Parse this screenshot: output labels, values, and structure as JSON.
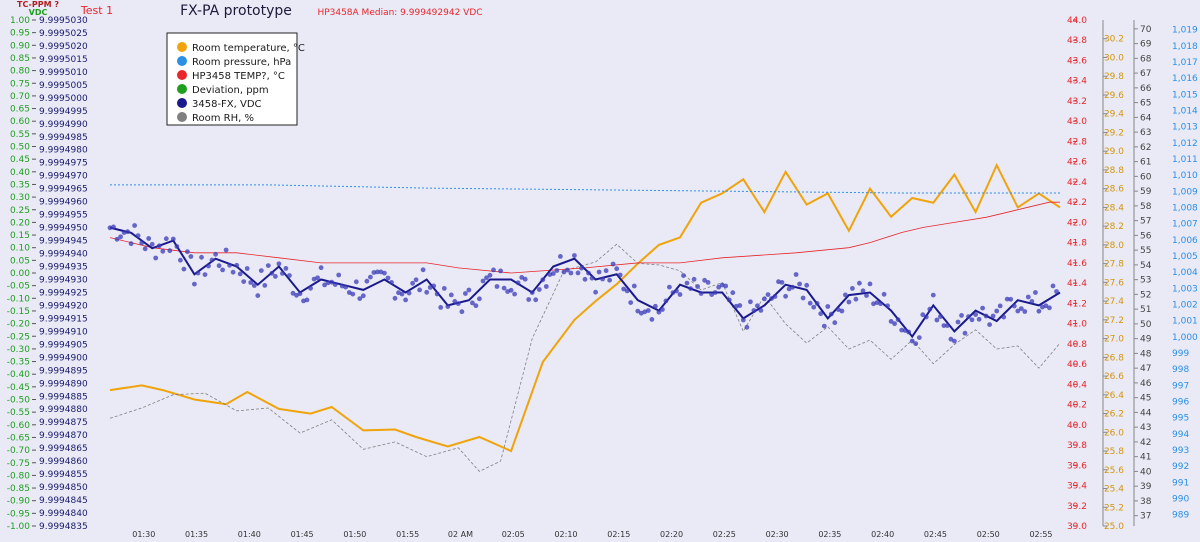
{
  "header": {
    "tc_label": "TC-PPM ?",
    "vdc_label": "VDC",
    "test_label": "Test 1",
    "title": "FX-PA prototype",
    "median_label": "HP3458A Median: 9.999492942 VDC"
  },
  "colors": {
    "background": "#e9eaf6",
    "room_temperature": "#f0a30a",
    "room_pressure": "#2b8fe6",
    "hp_temp": "#e8262b",
    "deviation": "#1e9e1e",
    "vdc": "#1a1a8c",
    "rh": "#808080"
  },
  "legend": [
    {
      "label": "Room temperature, °C",
      "color": "#f0a30a"
    },
    {
      "label": "Room pressure, hPa",
      "color": "#2b8fe6"
    },
    {
      "label": "HP3458 TEMP?, °C",
      "color": "#e8262b"
    },
    {
      "label": "Deviation, ppm",
      "color": "#1e9e1e"
    },
    {
      "label": "3458-FX, VDC",
      "color": "#1a1a8c"
    },
    {
      "label": "Room RH, %",
      "color": "#808080"
    }
  ],
  "chart_data": {
    "type": "line",
    "x_ticks": [
      "01:30",
      "01:35",
      "01:40",
      "01:45",
      "01:50",
      "01:55",
      "02 AM",
      "02:05",
      "02:10",
      "02:15",
      "02:20",
      "02:25",
      "02:30",
      "02:35",
      "02:40",
      "02:45",
      "02:50",
      "02:55"
    ],
    "axes": {
      "ppm": {
        "ylim": [
          -1.0,
          1.0
        ],
        "ticks": [
          "1.00",
          "0.95",
          "0.90",
          "0.85",
          "0.80",
          "0.75",
          "0.70",
          "0.65",
          "0.60",
          "0.55",
          "0.50",
          "0.45",
          "0.40",
          "0.35",
          "0.30",
          "0.25",
          "0.20",
          "0.15",
          "0.10",
          "0.05",
          "0.00",
          "-0.05",
          "-0.10",
          "-0.15",
          "-0.20",
          "-0.25",
          "-0.30",
          "-0.35",
          "-0.40",
          "-0.45",
          "-0.50",
          "-0.55",
          "-0.60",
          "-0.65",
          "-0.70",
          "-0.75",
          "-0.80",
          "-0.85",
          "-0.90",
          "-0.95",
          "-1.00"
        ]
      },
      "vdc": {
        "ylim": [
          9.9994835,
          9.999503
        ],
        "ticks": [
          "9.9995030",
          "9.9995025",
          "9.9995020",
          "9.9995015",
          "9.9995010",
          "9.9995005",
          "9.9995000",
          "9.9994995",
          "9.9994990",
          "9.9994985",
          "9.9994980",
          "9.9994975",
          "9.9994970",
          "9.9994965",
          "9.9994960",
          "9.9994955",
          "9.9994950",
          "9.9994945",
          "9.9994940",
          "9.9994935",
          "9.9994930",
          "9.9994925",
          "9.9994920",
          "9.9994915",
          "9.9994910",
          "9.9994905",
          "9.9994900",
          "9.9994895",
          "9.9994890",
          "9.9994885",
          "9.9994880",
          "9.9994875",
          "9.9994870",
          "9.9994865",
          "9.9994860",
          "9.9994855",
          "9.9994850",
          "9.9994845",
          "9.9994840",
          "9.9994835"
        ]
      },
      "hp_temp": {
        "ylim": [
          39.0,
          44.0
        ],
        "ticks": [
          "44.0",
          "43.8",
          "43.6",
          "43.4",
          "43.2",
          "43.0",
          "42.8",
          "42.6",
          "42.4",
          "42.2",
          "42.0",
          "41.8",
          "41.6",
          "41.4",
          "41.2",
          "41.0",
          "40.8",
          "40.6",
          "40.4",
          "40.2",
          "40.0",
          "39.8",
          "39.6",
          "39.4",
          "39.2",
          "39.0"
        ]
      },
      "room_temp": {
        "ylim": [
          25.0,
          30.4
        ],
        "ticks": [
          "30.2",
          "30.0",
          "29.8",
          "29.6",
          "29.4",
          "29.2",
          "29.0",
          "28.8",
          "28.6",
          "28.4",
          "28.2",
          "28.0",
          "27.8",
          "27.6",
          "27.4",
          "27.2",
          "27.0",
          "26.8",
          "26.6",
          "26.4",
          "26.2",
          "26.0",
          "25.8",
          "25.6",
          "25.4",
          "25.2",
          "25.0"
        ]
      },
      "rh": {
        "ylim": [
          36.3,
          70.6
        ],
        "ticks": [
          "70",
          "69",
          "68",
          "67",
          "66",
          "65",
          "64",
          "63",
          "62",
          "61",
          "60",
          "59",
          "58",
          "57",
          "56",
          "55",
          "54",
          "53",
          "52",
          "51",
          "50",
          "49",
          "48",
          "47",
          "46",
          "45",
          "44",
          "43",
          "42",
          "41",
          "40",
          "39",
          "38",
          "37"
        ]
      },
      "pressure": {
        "ylim": [
          988.3,
          1019.6
        ],
        "ticks": [
          "1,019",
          "1,018",
          "1,017",
          "1,016",
          "1,015",
          "1,014",
          "1,013",
          "1,012",
          "1,011",
          "1,010",
          "1,009",
          "1,008",
          "1,007",
          "1,006",
          "1,005",
          "1,004",
          "1,003",
          "1,002",
          "1,001",
          "1,000",
          "999",
          "998",
          "997",
          "996",
          "995",
          "994",
          "993",
          "992",
          "991",
          "990",
          "989"
        ]
      }
    },
    "series": [
      {
        "name": "Room temperature, °C",
        "axis": "room_temp",
        "color": "#f0a30a",
        "x": [
          0,
          3,
          5,
          8,
          11,
          13,
          16,
          19,
          21,
          24,
          27,
          29,
          32,
          35,
          38,
          41,
          44,
          46,
          48,
          50,
          52,
          54,
          56,
          58,
          60,
          62,
          64,
          66,
          68,
          70,
          72,
          74,
          76,
          78,
          80,
          82,
          84,
          86,
          88,
          90
        ],
        "y": [
          26.45,
          26.5,
          26.45,
          26.35,
          26.3,
          26.43,
          26.25,
          26.2,
          26.27,
          26.02,
          26.03,
          25.95,
          25.85,
          25.95,
          25.8,
          26.75,
          27.2,
          27.4,
          27.58,
          27.8,
          28.0,
          28.08,
          28.45,
          28.55,
          28.7,
          28.35,
          28.78,
          28.43,
          28.55,
          28.15,
          28.6,
          28.3,
          28.5,
          28.45,
          28.75,
          28.35,
          28.85,
          28.4,
          28.55,
          28.4
        ]
      },
      {
        "name": "Room RH, %",
        "axis": "rh",
        "color": "#808080",
        "x": [
          0,
          3,
          6,
          9,
          12,
          15,
          18,
          21,
          24,
          27,
          30,
          33,
          35,
          37,
          40,
          43,
          46,
          48,
          50,
          52,
          54,
          56,
          58,
          60,
          62,
          64,
          66,
          68,
          70,
          72,
          74,
          76,
          78,
          80,
          82,
          84,
          86,
          88,
          90
        ],
        "y": [
          43.6,
          44.3,
          45.2,
          45.3,
          44.1,
          44.3,
          42.6,
          43.5,
          41.5,
          42.0,
          41.0,
          41.6,
          40.0,
          40.7,
          49.0,
          53.6,
          54.2,
          55.4,
          54.1,
          54.0,
          53.6,
          52.3,
          52.8,
          49.5,
          51.9,
          50.0,
          48.7,
          49.8,
          48.3,
          48.9,
          47.6,
          48.9,
          47.3,
          48.6,
          49.6,
          48.3,
          48.5,
          47.0,
          48.7
        ]
      },
      {
        "name": "Room pressure, hPa",
        "axis": "pressure",
        "color": "#2b8fe6",
        "x": [
          0,
          15,
          30,
          45,
          60,
          75,
          90
        ],
        "y": [
          1009.4,
          1009.4,
          1009.2,
          1009.1,
          1009.0,
          1008.9,
          1008.9
        ]
      },
      {
        "name": "HP3458 TEMP?, °C",
        "axis": "hp_temp",
        "color": "#e8262b",
        "x": [
          0,
          2,
          4,
          8,
          12,
          16,
          20,
          30,
          33,
          38,
          45,
          50,
          54,
          58,
          65,
          70,
          72,
          75,
          77,
          80,
          83,
          85,
          87,
          89,
          90
        ],
        "y": [
          41.85,
          41.8,
          41.75,
          41.7,
          41.7,
          41.65,
          41.6,
          41.6,
          41.55,
          41.5,
          41.55,
          41.6,
          41.6,
          41.65,
          41.7,
          41.75,
          41.8,
          41.9,
          41.95,
          42.0,
          42.05,
          42.1,
          42.15,
          42.2,
          42.2
        ]
      },
      {
        "name": "3458-FX, VDC",
        "axis": "vdc",
        "color": "#1a1a8c",
        "x": [
          0,
          2,
          4,
          6,
          8,
          10,
          12,
          14,
          16,
          18,
          20,
          22,
          24,
          26,
          28,
          30,
          32,
          34,
          36,
          38,
          40,
          42,
          44,
          46,
          48,
          50,
          52,
          54,
          56,
          58,
          60,
          62,
          64,
          66,
          68,
          70,
          72,
          74,
          76,
          78,
          80,
          82,
          84,
          86,
          88,
          90
        ],
        "y": [
          9.999495,
          9.9994948,
          9.9994942,
          9.9994945,
          9.9994932,
          9.9994938,
          9.9994935,
          9.9994928,
          9.9994935,
          9.9994925,
          9.999493,
          9.9994928,
          9.9994926,
          9.999493,
          9.9994925,
          9.999493,
          9.999492,
          9.9994922,
          9.999493,
          9.999493,
          9.9994925,
          9.9994935,
          9.9994938,
          9.999493,
          9.9994932,
          9.9994922,
          9.9994918,
          9.9994928,
          9.9994925,
          9.9994925,
          9.9994915,
          9.999492,
          9.9994928,
          9.9994926,
          9.9994915,
          9.9994924,
          9.9994925,
          9.9994918,
          9.9994908,
          9.999492,
          9.999491,
          9.9994918,
          9.9994914,
          9.9994922,
          9.999492,
          9.9994925
        ]
      }
    ]
  }
}
